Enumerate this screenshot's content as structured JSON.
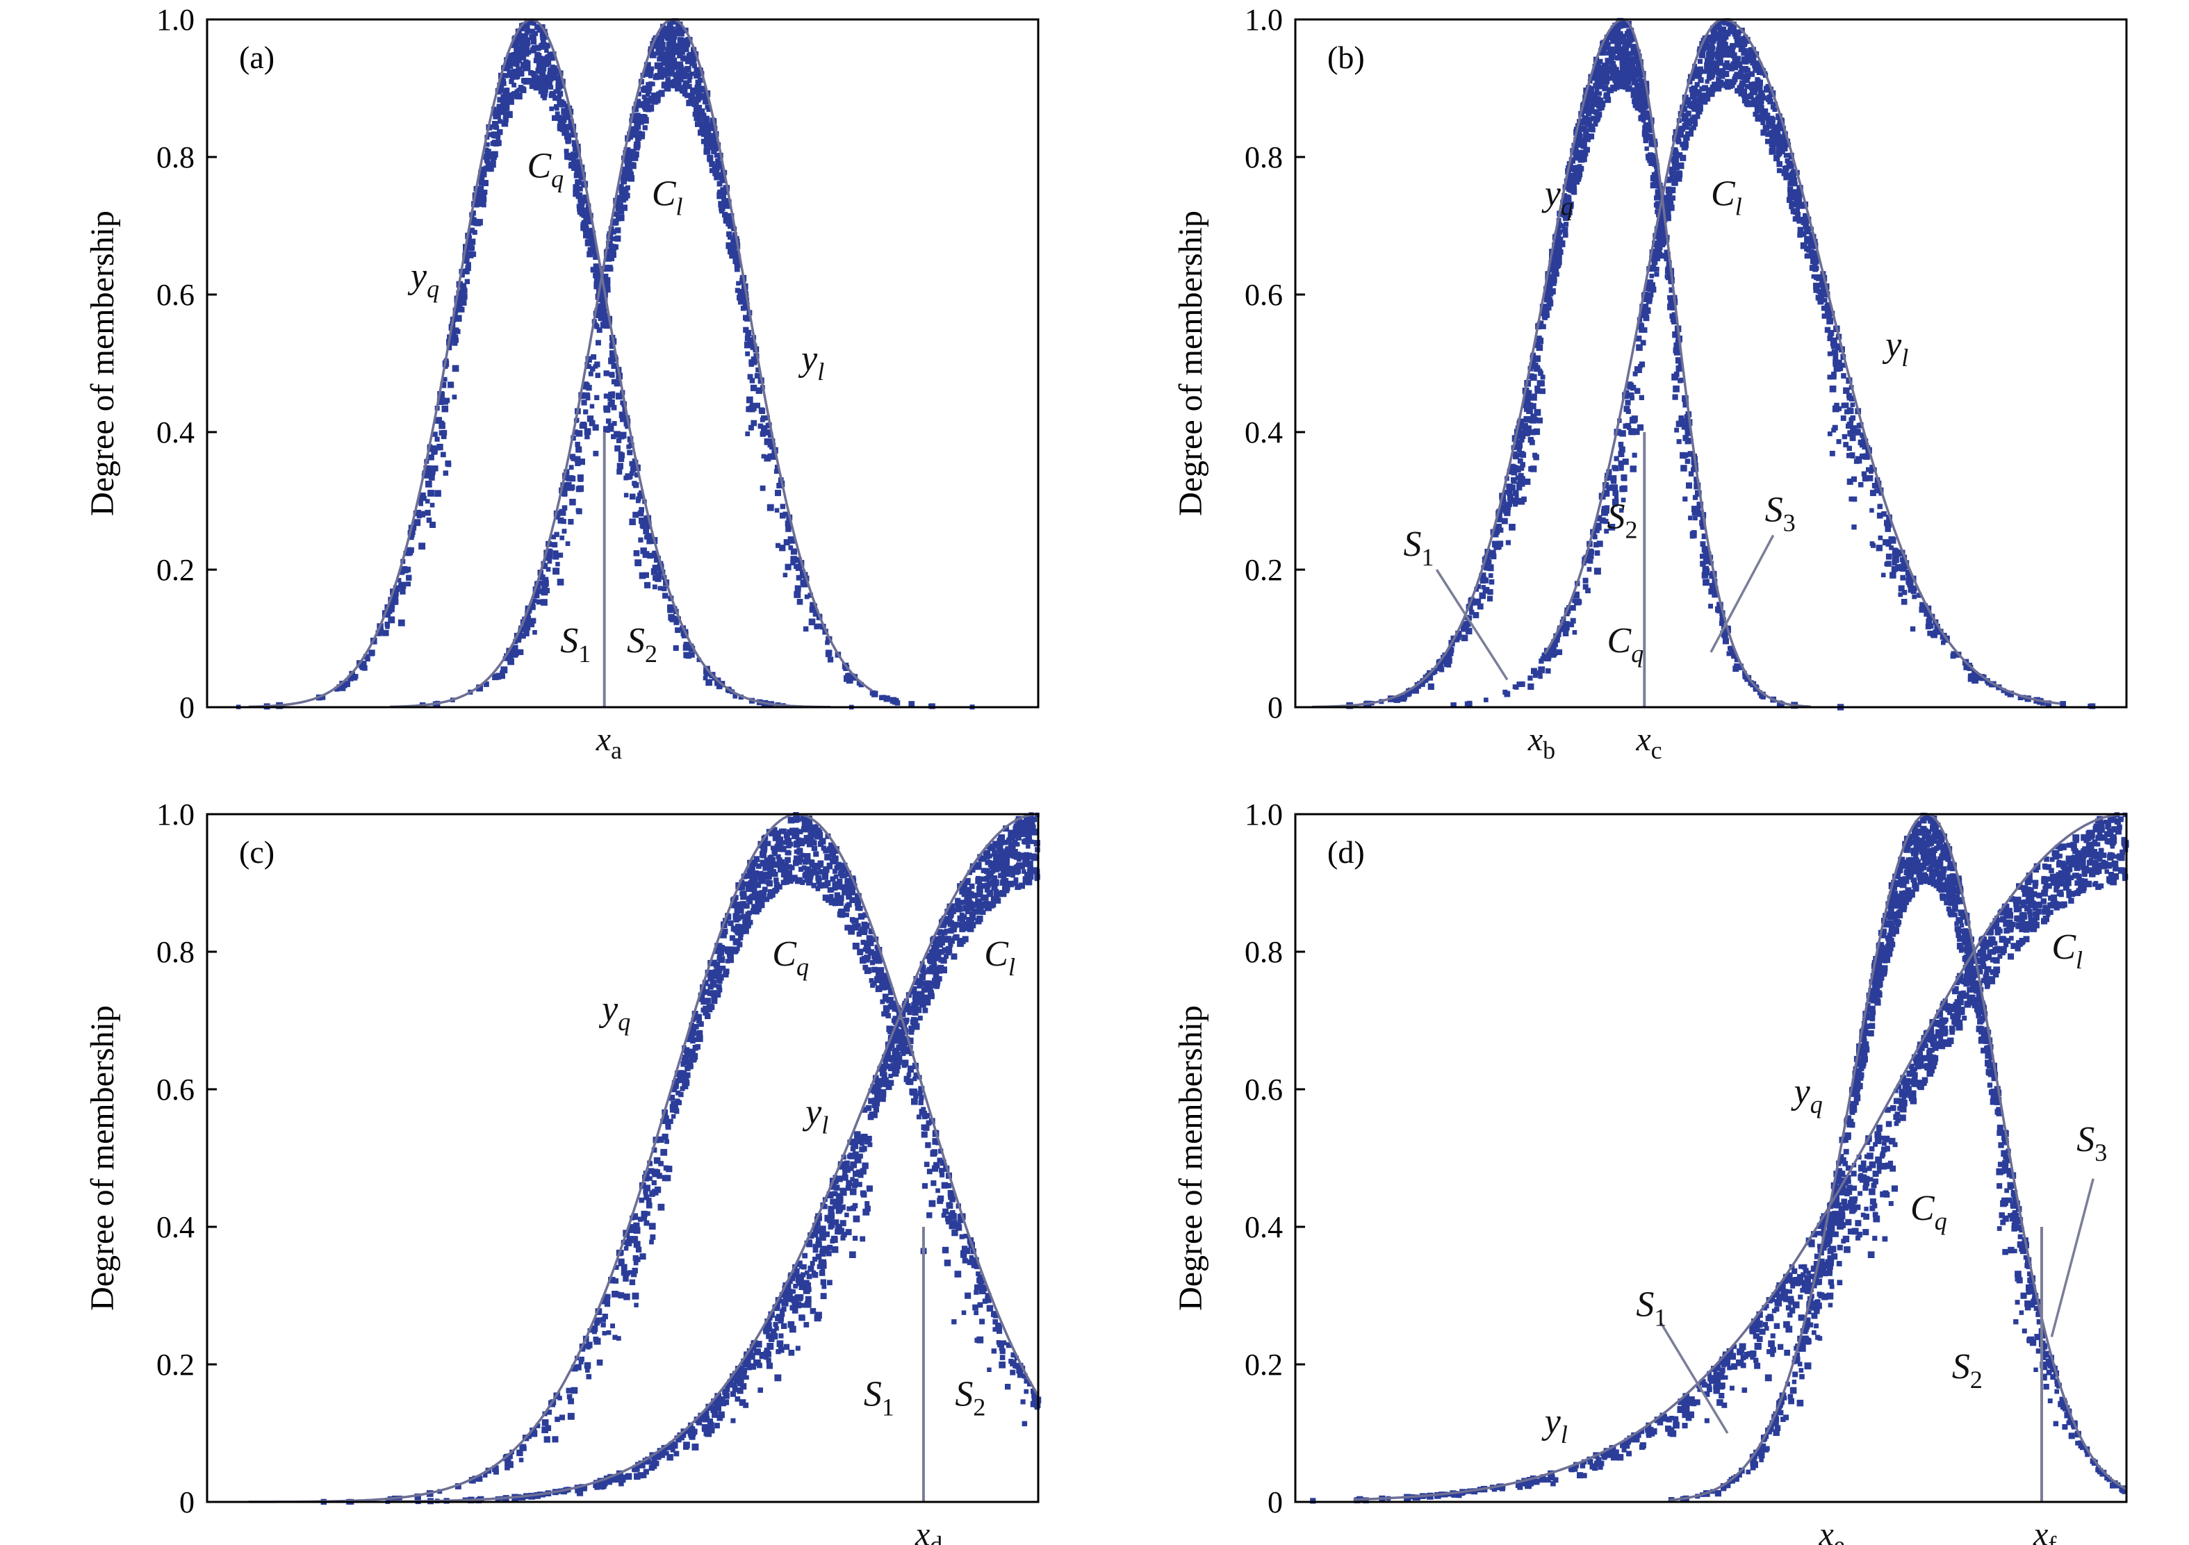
{
  "chart_data": [
    {
      "type": "scatter",
      "panel_label": "(a)",
      "ylabel": "Degree of membership",
      "ylim": [
        0,
        1
      ],
      "yticks": [
        "0",
        "0.2",
        "0.4",
        "0.6",
        "0.8",
        "1.0"
      ],
      "xlim": [
        0,
        1
      ],
      "grid": false,
      "curves": [
        {
          "name": "y_q",
          "center": 0.39,
          "sigma": 0.088,
          "side": "both",
          "x_range": [
            0.05,
            0.75
          ]
        },
        {
          "name": "y_l",
          "center": 0.56,
          "sigma": 0.088,
          "side": "both",
          "x_range": [
            0.22,
            0.8
          ]
        }
      ],
      "clusters": [
        {
          "name": "C_q",
          "center": 0.39,
          "sigma": 0.088,
          "count": 900
        },
        {
          "name": "C_l",
          "center": 0.56,
          "sigma": 0.088,
          "count": 900
        }
      ],
      "boundaries": [
        {
          "x": 0.478,
          "label": "x",
          "label_sub": "a"
        }
      ],
      "annotations": [
        {
          "main": "y",
          "sub": "q",
          "x": 0.245,
          "y": 0.61
        },
        {
          "main": "C",
          "sub": "q",
          "x": 0.385,
          "y": 0.77
        },
        {
          "main": "C",
          "sub": "l",
          "x": 0.535,
          "y": 0.73
        },
        {
          "main": "y",
          "sub": "l",
          "x": 0.715,
          "y": 0.49
        },
        {
          "main": "S",
          "sub": "1",
          "sub_upright": true,
          "x": 0.425,
          "y": 0.08
        },
        {
          "main": "S",
          "sub": "2",
          "sub_upright": true,
          "x": 0.505,
          "y": 0.08
        }
      ]
    },
    {
      "type": "scatter",
      "panel_label": "(b)",
      "ylabel": "Degree of membership",
      "ylim": [
        0,
        1
      ],
      "yticks": [
        "0",
        "0.2",
        "0.4",
        "0.6",
        "0.8",
        "1.0"
      ],
      "xlim": [
        0,
        1
      ],
      "grid": false,
      "curves": [
        {
          "name": "y_q",
          "center": 0.395,
          "sigma_left": 0.095,
          "sigma_right": 0.06,
          "side": "both",
          "x_range": [
            0.02,
            0.62
          ]
        },
        {
          "name": "y_l",
          "center": 0.515,
          "sigma_left": 0.095,
          "sigma_right": 0.125,
          "side": "both",
          "x_range": [
            0.3,
            0.92
          ]
        }
      ],
      "clusters": [
        {
          "name": "C_q",
          "center": 0.395,
          "sigma_left": 0.095,
          "sigma_right": 0.06,
          "count": 1100
        },
        {
          "name": "C_l",
          "center": 0.515,
          "sigma_left": 0.095,
          "sigma_right": 0.125,
          "count": 1100
        }
      ],
      "boundaries": [
        {
          "x": 0.42,
          "label": "x",
          "label_sub": "c",
          "line": true
        },
        {
          "x": 0.29,
          "label": "x",
          "label_sub": "b",
          "line": false
        }
      ],
      "annotations": [
        {
          "main": "y",
          "sub": "q",
          "x": 0.3,
          "y": 0.73
        },
        {
          "main": "C",
          "sub": "l",
          "x": 0.5,
          "y": 0.73
        },
        {
          "main": "y",
          "sub": "l",
          "x": 0.71,
          "y": 0.51
        },
        {
          "main": "S",
          "sub": "1",
          "sub_upright": true,
          "x": 0.13,
          "y": 0.22
        },
        {
          "main": "S",
          "sub": "2",
          "sub_upright": true,
          "x": 0.375,
          "y": 0.26
        },
        {
          "main": "S",
          "sub": "3",
          "sub_upright": true,
          "x": 0.565,
          "y": 0.27
        },
        {
          "main": "C",
          "sub": "q",
          "x": 0.375,
          "y": 0.08
        }
      ],
      "leaders": [
        {
          "from": [
            0.17,
            0.2
          ],
          "to": [
            0.255,
            0.04
          ]
        },
        {
          "from": [
            0.575,
            0.25
          ],
          "to": [
            0.5,
            0.08
          ]
        }
      ]
    },
    {
      "type": "scatter",
      "panel_label": "(c)",
      "ylabel": "Degree of membership",
      "ylim": [
        0,
        1
      ],
      "yticks": [
        "0",
        "0.2",
        "0.4",
        "0.6",
        "0.8",
        "1.0"
      ],
      "xlim": [
        0,
        1
      ],
      "grid": false,
      "curves": [
        {
          "name": "y_q",
          "center": 0.71,
          "sigma": 0.15,
          "side": "both",
          "x_range": [
            0.05,
            1.0
          ]
        },
        {
          "name": "y_l",
          "center": 1.0,
          "sigma": 0.2,
          "side": "left",
          "x_range": [
            0.22,
            1.0
          ]
        }
      ],
      "clusters": [
        {
          "name": "C_q",
          "center": 0.71,
          "sigma": 0.15,
          "count": 1100
        },
        {
          "name": "C_l",
          "center": 1.0,
          "sigma": 0.2,
          "count": 1100
        }
      ],
      "boundaries": [
        {
          "x": 0.862,
          "label": "x",
          "label_sub": "d"
        }
      ],
      "annotations": [
        {
          "main": "y",
          "sub": "q",
          "x": 0.475,
          "y": 0.7
        },
        {
          "main": "C",
          "sub": "q",
          "x": 0.68,
          "y": 0.78
        },
        {
          "main": "C",
          "sub": "l",
          "x": 0.935,
          "y": 0.78
        },
        {
          "main": "y",
          "sub": "l",
          "x": 0.72,
          "y": 0.55
        },
        {
          "main": "S",
          "sub": "1",
          "sub_upright": true,
          "x": 0.79,
          "y": 0.14
        },
        {
          "main": "S",
          "sub": "2",
          "sub_upright": true,
          "x": 0.9,
          "y": 0.14
        }
      ]
    },
    {
      "type": "scatter",
      "panel_label": "(d)",
      "ylabel": "Degree of membership",
      "ylim": [
        0,
        1
      ],
      "yticks": [
        "0",
        "0.2",
        "0.4",
        "0.6",
        "0.8",
        "1.0"
      ],
      "xlim": [
        0,
        1
      ],
      "grid": false,
      "curves": [
        {
          "name": "y_q",
          "center": 0.76,
          "sigma_left": 0.09,
          "sigma_right": 0.085,
          "side": "both",
          "x_range": [
            0.45,
            1.0
          ]
        },
        {
          "name": "y_l",
          "center": 1.0,
          "sigma": 0.275,
          "side": "left",
          "x_range": [
            0.07,
            1.0
          ]
        }
      ],
      "clusters": [
        {
          "name": "C_q",
          "center": 0.76,
          "sigma_left": 0.09,
          "sigma_right": 0.085,
          "count": 1100
        },
        {
          "name": "C_l",
          "center": 1.0,
          "sigma": 0.275,
          "count": 1100
        }
      ],
      "boundaries": [
        {
          "x": 0.898,
          "label": "x",
          "label_sub": "f",
          "line": true
        },
        {
          "x": 0.64,
          "label": "x",
          "label_sub": "e",
          "line": false
        }
      ],
      "annotations": [
        {
          "main": "y",
          "sub": "q",
          "x": 0.6,
          "y": 0.58
        },
        {
          "main": "C",
          "sub": "l",
          "x": 0.91,
          "y": 0.79
        },
        {
          "main": "C",
          "sub": "q",
          "x": 0.74,
          "y": 0.41
        },
        {
          "main": "S",
          "sub": "3",
          "sub_upright": true,
          "x": 0.94,
          "y": 0.51
        },
        {
          "main": "S",
          "sub": "1",
          "sub_upright": true,
          "x": 0.41,
          "y": 0.27
        },
        {
          "main": "S",
          "sub": "2",
          "sub_upright": true,
          "x": 0.79,
          "y": 0.18
        },
        {
          "main": "y",
          "sub": "l",
          "x": 0.3,
          "y": 0.1
        }
      ],
      "leaders": [
        {
          "from": [
            0.44,
            0.26
          ],
          "to": [
            0.52,
            0.1
          ]
        },
        {
          "from": [
            0.96,
            0.47
          ],
          "to": [
            0.91,
            0.24
          ]
        }
      ]
    }
  ]
}
